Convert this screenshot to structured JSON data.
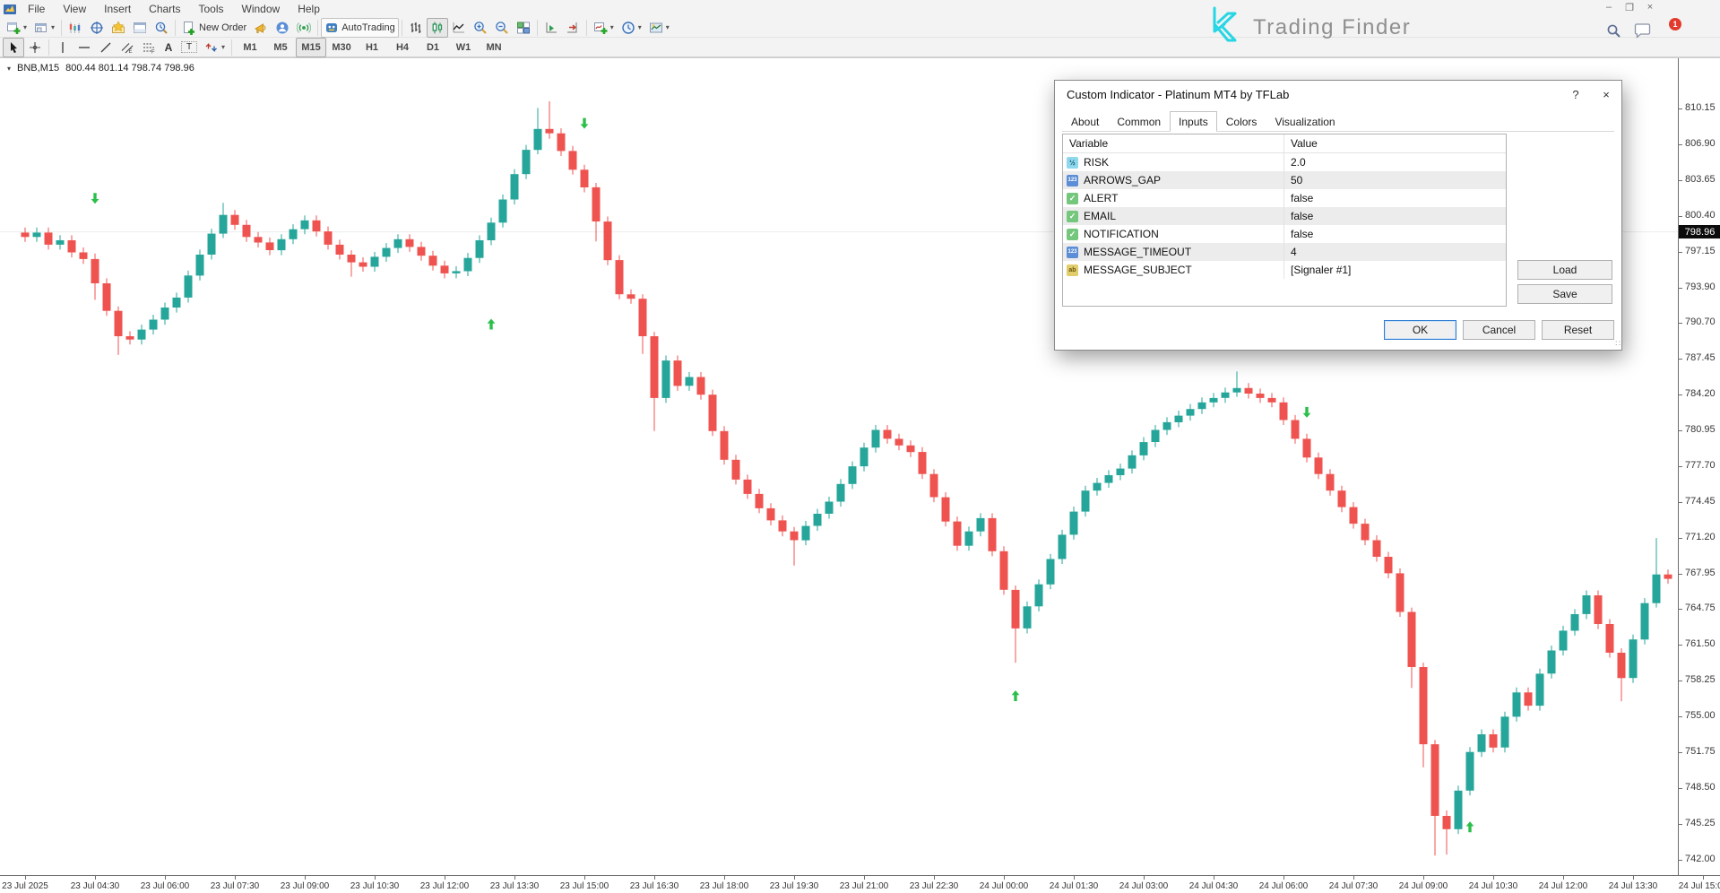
{
  "menubar": {
    "items": [
      "File",
      "View",
      "Insert",
      "Charts",
      "Tools",
      "Window",
      "Help"
    ]
  },
  "window_controls": {
    "minimize": "–",
    "restore": "❐",
    "close": "×"
  },
  "brand": {
    "name": "Trading Finder",
    "badge": "1",
    "accent": "#27d6e4"
  },
  "toolbar_main": [
    {
      "name": "new-chart-button",
      "icon": "new-chart-icon",
      "caret": true
    },
    {
      "name": "profiles-button",
      "icon": "profiles-icon",
      "caret": true
    },
    {
      "sep": true
    },
    {
      "name": "market-watch-button",
      "icon": "market-watch-icon"
    },
    {
      "name": "data-window-button",
      "icon": "data-window-icon"
    },
    {
      "name": "navigator-button",
      "icon": "navigator-icon"
    },
    {
      "name": "terminal-button",
      "icon": "terminal-icon"
    },
    {
      "name": "strategy-tester-button",
      "icon": "tester-icon"
    },
    {
      "sep": true
    },
    {
      "name": "new-order-button",
      "icon": "new-order-icon",
      "label": "New Order"
    },
    {
      "name": "metaeditor-button",
      "icon": "megaphone-icon"
    },
    {
      "name": "community-button",
      "icon": "community-icon"
    },
    {
      "name": "signals-button",
      "icon": "signals-icon"
    },
    {
      "sep": true
    },
    {
      "name": "autotrading-button",
      "icon": "autotrading-icon",
      "label": "AutoTrading",
      "framed": true
    },
    {
      "sep": true
    },
    {
      "name": "bar-chart-button",
      "icon": "bars-icon"
    },
    {
      "name": "candle-chart-button",
      "icon": "candles-icon",
      "pressed": true
    },
    {
      "name": "line-chart-button",
      "icon": "line-chart-icon"
    },
    {
      "name": "zoom-in-button",
      "icon": "zoom-in-icon"
    },
    {
      "name": "zoom-out-button",
      "icon": "zoom-out-icon"
    },
    {
      "name": "tile-windows-button",
      "icon": "tile-icon"
    },
    {
      "sep": true
    },
    {
      "name": "auto-scroll-button",
      "icon": "auto-scroll-icon"
    },
    {
      "name": "chart-shift-button",
      "icon": "chart-shift-icon"
    },
    {
      "sep": true
    },
    {
      "name": "indicators-button",
      "icon": "indicators-icon",
      "caret": true
    },
    {
      "name": "periods-button",
      "icon": "periods-icon",
      "caret": true
    },
    {
      "name": "templates-button",
      "icon": "templates-icon",
      "caret": true
    }
  ],
  "toolbar_drawing": [
    {
      "name": "cursor-button",
      "icon": "cursor-icon",
      "pressed": true
    },
    {
      "name": "crosshair-button",
      "icon": "crosshair-icon"
    },
    {
      "sep": true
    },
    {
      "name": "vertical-line-button",
      "icon": "vline-icon"
    },
    {
      "name": "horizontal-line-button",
      "icon": "hline-icon"
    },
    {
      "name": "trendline-button",
      "icon": "trendline-icon"
    },
    {
      "name": "channel-button",
      "icon": "channel-icon"
    },
    {
      "name": "fibonacci-button",
      "icon": "fibonacci-icon"
    },
    {
      "name": "text-button",
      "glyph": "A"
    },
    {
      "name": "label-button",
      "glyph": "T",
      "boxed": true
    },
    {
      "name": "shapes-button",
      "icon": "shapes-icon",
      "caret": true
    },
    {
      "sep": true
    }
  ],
  "timeframes": {
    "items": [
      "M1",
      "M5",
      "M15",
      "M30",
      "H1",
      "H4",
      "D1",
      "W1",
      "MN"
    ],
    "active": "M15"
  },
  "chart": {
    "collapse_glyph": "▾",
    "symbol": "BNB,M15",
    "ohlc": "800.44 801.14 798.74 798.96",
    "current_price": "798.96",
    "colors": {
      "bull": "#26a69a",
      "bear": "#ef5350",
      "arrow": "#2bbf4a"
    },
    "price_axis": [
      "810.15",
      "806.90",
      "803.65",
      "800.40",
      "797.15",
      "793.90",
      "790.70",
      "787.45",
      "784.20",
      "780.95",
      "777.70",
      "774.45",
      "771.20",
      "767.95",
      "764.75",
      "761.50",
      "758.25",
      "755.00",
      "751.75",
      "748.50",
      "745.25",
      "742.00"
    ],
    "time_axis": [
      "23 Jul 2025",
      "23 Jul 04:30",
      "23 Jul 06:00",
      "23 Jul 07:30",
      "23 Jul 09:00",
      "23 Jul 10:30",
      "23 Jul 12:00",
      "23 Jul 13:30",
      "23 Jul 15:00",
      "23 Jul 16:30",
      "23 Jul 18:00",
      "23 Jul 19:30",
      "23 Jul 21:00",
      "23 Jul 22:30",
      "24 Jul 00:00",
      "24 Jul 01:30",
      "24 Jul 03:00",
      "24 Jul 04:30",
      "24 Jul 06:00",
      "24 Jul 07:30",
      "24 Jul 09:00",
      "24 Jul 10:30",
      "24 Jul 12:00",
      "24 Jul 13:30",
      "24 Jul 15:00"
    ]
  },
  "chart_data": {
    "type": "candlestick",
    "symbol": "BNB",
    "timeframe": "M15",
    "ylim": [
      742.0,
      810.15
    ],
    "first_open": 798.9,
    "closes": [
      798.5,
      798.9,
      797.8,
      798.2,
      797.1,
      796.5,
      794.3,
      791.8,
      789.5,
      789.2,
      790.1,
      791.0,
      792.1,
      793.0,
      795.0,
      796.9,
      798.8,
      800.5,
      799.6,
      798.5,
      798.0,
      797.3,
      798.3,
      799.2,
      800.0,
      799.0,
      797.8,
      796.9,
      796.2,
      795.8,
      796.7,
      797.5,
      798.3,
      797.6,
      796.8,
      795.9,
      795.2,
      795.4,
      796.6,
      798.2,
      799.8,
      801.9,
      804.2,
      806.4,
      808.3,
      807.9,
      806.3,
      804.6,
      803.0,
      799.9,
      796.4,
      793.3,
      792.9,
      789.5,
      783.9,
      787.3,
      785.0,
      785.8,
      784.2,
      780.9,
      778.3,
      776.5,
      775.2,
      773.9,
      772.8,
      771.8,
      771.0,
      772.3,
      773.4,
      774.5,
      776.1,
      777.7,
      779.4,
      781.0,
      780.2,
      779.6,
      779.0,
      777.0,
      774.9,
      772.7,
      770.5,
      771.8,
      773.0,
      770.0,
      766.5,
      763.0,
      765.0,
      767.0,
      769.3,
      771.5,
      773.6,
      775.5,
      776.2,
      776.9,
      777.5,
      778.7,
      779.9,
      781.0,
      781.7,
      782.3,
      782.9,
      783.5,
      783.9,
      784.4,
      784.8,
      784.3,
      783.9,
      783.5,
      781.9,
      780.2,
      778.5,
      777.0,
      775.5,
      774.0,
      772.5,
      771.0,
      769.5,
      768.0,
      764.5,
      759.5,
      752.5,
      746.0,
      744.8,
      748.3,
      751.8,
      753.4,
      752.2,
      755.0,
      757.2,
      756.0,
      758.9,
      761.0,
      762.8,
      764.3,
      766.0,
      763.4,
      760.8,
      758.5,
      762.0,
      765.3,
      767.9,
      767.5
    ],
    "wicks": {
      "6": [
        0.5,
        1.5
      ],
      "8": [
        0.4,
        1.7
      ],
      "17": [
        1.1,
        0.4
      ],
      "28": [
        0.4,
        1.3
      ],
      "44": [
        1.9,
        0.4
      ],
      "45": [
        2.5,
        0.5
      ],
      "49": [
        0.4,
        1.8
      ],
      "53": [
        0.4,
        1.6
      ],
      "54": [
        0.4,
        3.0
      ],
      "66": [
        0.4,
        2.3
      ],
      "85": [
        0.4,
        3.1
      ],
      "104": [
        1.5,
        0.4
      ],
      "119": [
        0.4,
        1.9
      ],
      "120": [
        0.4,
        2.1
      ],
      "121": [
        0.4,
        3.6
      ],
      "122": [
        0.5,
        2.3
      ],
      "137": [
        0.4,
        2.1
      ],
      "140": [
        3.3,
        0.4
      ]
    },
    "signals": [
      {
        "t": 6,
        "dir": "down",
        "price": 802.0
      },
      {
        "t": 40,
        "dir": "up",
        "price": 790.6
      },
      {
        "t": 48,
        "dir": "down",
        "price": 808.8
      },
      {
        "t": 85,
        "dir": "up",
        "price": 756.9
      },
      {
        "t": 110,
        "dir": "down",
        "price": 782.6
      },
      {
        "t": 124,
        "dir": "up",
        "price": 745.0
      }
    ]
  },
  "dialog": {
    "title": "Custom Indicator - Platinum MT4 by TFLab",
    "help_glyph": "?",
    "close_glyph": "×",
    "tabs": [
      "About",
      "Common",
      "Inputs",
      "Colors",
      "Visualization"
    ],
    "active_tab": "Inputs",
    "table": {
      "headers": [
        "Variable",
        "Value"
      ],
      "rows": [
        {
          "type": "double",
          "name": "RISK",
          "value": "2.0"
        },
        {
          "type": "integer",
          "name": "ARROWS_GAP",
          "value": "50"
        },
        {
          "type": "boolean",
          "name": "ALERT",
          "value": "false"
        },
        {
          "type": "boolean",
          "name": "EMAIL",
          "value": "false"
        },
        {
          "type": "boolean",
          "name": "NOTIFICATION",
          "value": "false"
        },
        {
          "type": "integer",
          "name": "MESSAGE_TIMEOUT",
          "value": "4"
        },
        {
          "type": "string",
          "name": "MESSAGE_SUBJECT",
          "value": "[Signaler #1]"
        }
      ]
    },
    "buttons": {
      "load": "Load",
      "save": "Save",
      "ok": "OK",
      "cancel": "Cancel",
      "reset": "Reset"
    }
  }
}
